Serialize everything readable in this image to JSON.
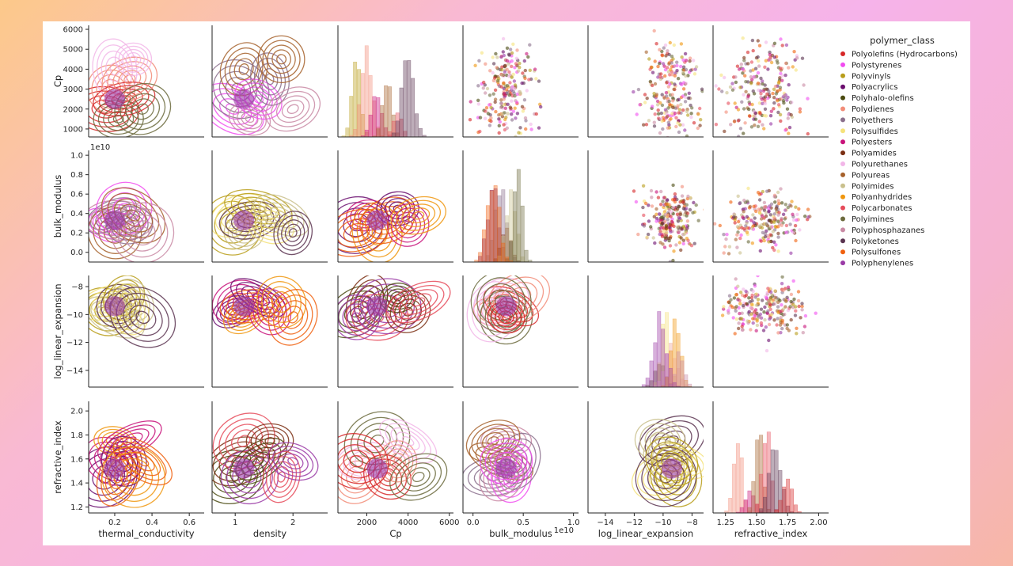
{
  "chart_data": {
    "type": "pairplot",
    "variables": [
      "thermal_conductivity",
      "density",
      "Cp",
      "bulk_modulus",
      "log_linear_expansion",
      "refractive_index"
    ],
    "row_variables": [
      "Cp",
      "bulk_modulus",
      "log_linear_expansion",
      "refractive_index"
    ],
    "column_variables": [
      "thermal_conductivity",
      "density",
      "Cp",
      "bulk_modulus",
      "log_linear_expansion",
      "refractive_index"
    ],
    "lower_triangle": "kde",
    "upper_triangle": "scatter",
    "diagonal": "histogram",
    "axes": {
      "thermal_conductivity": {
        "range": [
          0.06,
          0.68
        ],
        "ticks": [
          0.2,
          0.4,
          0.6
        ],
        "tick_labels": [
          "0.2",
          "0.4",
          "0.6"
        ],
        "offset": ""
      },
      "density": {
        "range": [
          0.6,
          2.6
        ],
        "ticks": [
          1,
          2
        ],
        "tick_labels": [
          "1",
          "2"
        ],
        "offset": ""
      },
      "Cp": {
        "range": [
          600,
          6200
        ],
        "ticks": [
          1000,
          2000,
          3000,
          4000,
          5000,
          6000
        ],
        "tick_labels": [
          "1000",
          "2000",
          "3000",
          "4000",
          "5000",
          "6000"
        ],
        "col_ticks": [
          2000,
          4000,
          6000
        ],
        "col_tick_labels": [
          "2000",
          "4000",
          "6000"
        ],
        "offset": ""
      },
      "bulk_modulus": {
        "range": [
          -0.1,
          1.05
        ],
        "ticks": [
          0.0,
          0.2,
          0.4,
          0.6,
          0.8,
          1.0
        ],
        "tick_labels": [
          "0.0",
          "0.2",
          "0.4",
          "0.6",
          "0.8",
          "1.0"
        ],
        "col_ticks": [
          0.0,
          0.5,
          1.0
        ],
        "col_tick_labels": [
          "0.0",
          "0.5",
          "1.0"
        ],
        "offset": "1e10"
      },
      "log_linear_expansion": {
        "range": [
          -15.2,
          -7.2
        ],
        "ticks": [
          -14,
          -12,
          -10,
          -8
        ],
        "tick_labels": [
          "−14",
          "−12",
          "−10",
          "−8"
        ],
        "col_ticks": [
          -14,
          -12,
          -10,
          -8
        ],
        "col_tick_labels": [
          "−14",
          "−12",
          "−10",
          "−8"
        ],
        "offset": ""
      },
      "refractive_index": {
        "range": [
          1.15,
          2.08
        ],
        "ticks": [
          1.2,
          1.4,
          1.6,
          1.8,
          2.0
        ],
        "tick_labels": [
          "1.2",
          "1.4",
          "1.6",
          "1.8",
          "2.0"
        ],
        "col_ticks": [
          1.25,
          1.5,
          1.75,
          2.0
        ],
        "col_tick_labels": [
          "1.25",
          "1.50",
          "1.75",
          "2.00"
        ],
        "offset": ""
      }
    },
    "legend": {
      "title": "polymer_class",
      "placement": "right",
      "entries": [
        {
          "label": "Polyolefins (Hydrocarbons)",
          "color": "#d62728"
        },
        {
          "label": "Polystyrenes",
          "color": "#f14cf0"
        },
        {
          "label": "Polyvinyls",
          "color": "#b89d19"
        },
        {
          "label": "Polyacrylics",
          "color": "#6a0d6e"
        },
        {
          "label": "Polyhalo-olefins",
          "color": "#4a4a10"
        },
        {
          "label": "Polydienes",
          "color": "#f28c78"
        },
        {
          "label": "Polyethers",
          "color": "#8a6f8c"
        },
        {
          "label": "Polysulfides",
          "color": "#f5e27a"
        },
        {
          "label": "Polyesters",
          "color": "#c8127a"
        },
        {
          "label": "Polyamides",
          "color": "#7a2e12"
        },
        {
          "label": "Polyurethanes",
          "color": "#f2b6e8"
        },
        {
          "label": "Polyureas",
          "color": "#a6612b"
        },
        {
          "label": "Polyimides",
          "color": "#c9c08c"
        },
        {
          "label": "Polyanhydrides",
          "color": "#f0960e"
        },
        {
          "label": "Polycarbonates",
          "color": "#e64b5a"
        },
        {
          "label": "Polyimines",
          "color": "#6b6a3c"
        },
        {
          "label": "Polyphosphazanes",
          "color": "#c98aa4"
        },
        {
          "label": "Polyketones",
          "color": "#5a3350"
        },
        {
          "label": "Polysulfones",
          "color": "#f0600e"
        },
        {
          "label": "Polyphenylenes",
          "color": "#9a3aa6"
        }
      ]
    },
    "kde_centers": {
      "thermal_conductivity": [
        0.15,
        0.18,
        0.2,
        0.22,
        0.25,
        0.28,
        0.3,
        0.35
      ],
      "density": [
        0.95,
        1.05,
        1.15,
        1.25,
        1.4,
        1.6,
        1.8,
        2.0
      ],
      "Cp": [
        1500,
        2000,
        2500,
        3000,
        3500,
        4000,
        4500
      ],
      "bulk_modulus": [
        0.2,
        0.28,
        0.33,
        0.38,
        0.45
      ],
      "log_linear_expansion": [
        -10.2,
        -9.8,
        -9.4,
        -9.1,
        -8.8
      ],
      "refractive_index": [
        1.35,
        1.45,
        1.52,
        1.58,
        1.65,
        1.75
      ]
    }
  }
}
